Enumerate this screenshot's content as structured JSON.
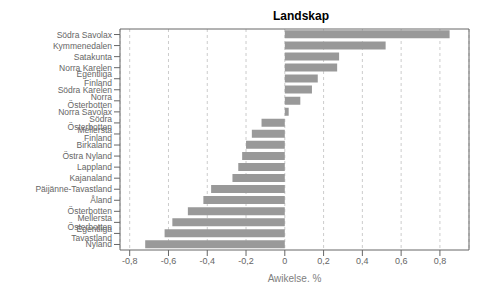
{
  "chart_data": {
    "type": "bar",
    "orientation": "horizontal",
    "title": "Landskap",
    "xlabel": "Awikelse, %",
    "categories": [
      "Södra Savolax",
      "Kymmenedalen",
      "Satakunta",
      "Norra Karelen",
      "Egentliga Finland",
      "Södra Karelen",
      "Norra Österbotten",
      "Norra Savolax",
      "Södra Österbotten",
      "Mellersta Finland",
      "Birkaland",
      "Östra Nyland",
      "Lappland",
      "Kajanaland",
      "Päijänne-Tavastland",
      "Åland",
      "Österbotten",
      "Mellersta Österbotten",
      "Egentliga Tavastland",
      "Nyland"
    ],
    "values": [
      0.85,
      0.52,
      0.28,
      0.27,
      0.17,
      0.14,
      0.08,
      0.02,
      -0.12,
      -0.17,
      -0.2,
      -0.22,
      -0.24,
      -0.27,
      -0.38,
      -0.42,
      -0.5,
      -0.58,
      -0.62,
      -0.72
    ],
    "color": "#999999",
    "xlim": [
      -0.85,
      0.95
    ],
    "xticks": [
      {
        "value": -0.8,
        "label": "-0,8"
      },
      {
        "value": -0.6,
        "label": "-0,6"
      },
      {
        "value": -0.4,
        "label": "-0,4"
      },
      {
        "value": -0.2,
        "label": "-0,2"
      },
      0,
      {
        "value": 0.2,
        "label": "0,2"
      },
      {
        "value": 0.4,
        "label": "0,4"
      },
      {
        "value": 0.6,
        "label": "0,6"
      },
      {
        "value": 0.8,
        "label": "0,8"
      }
    ],
    "grid": true
  }
}
